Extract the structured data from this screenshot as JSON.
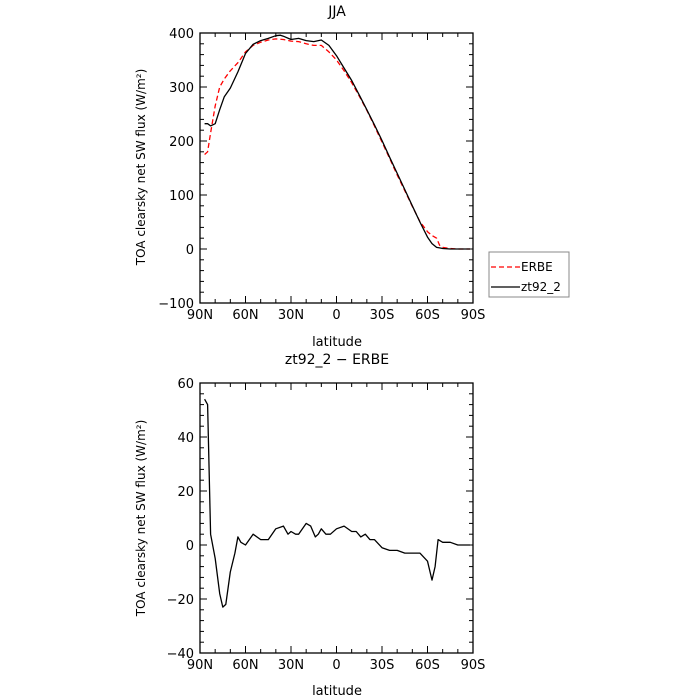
{
  "chart_data": [
    {
      "type": "line",
      "title": "JJA",
      "xlabel": "latitude",
      "ylabel": "TOA clearsky net SW flux (W/m²)",
      "xlim": [
        90,
        -90
      ],
      "ylim": [
        -100,
        400
      ],
      "x_ticks": [
        90,
        60,
        30,
        0,
        -30,
        -60,
        -90
      ],
      "x_tick_labels": [
        "90N",
        "60N",
        "30N",
        "0",
        "30S",
        "60S",
        "90S"
      ],
      "y_ticks": [
        -100,
        0,
        100,
        200,
        300,
        400
      ],
      "y_tick_labels": [
        "−100",
        "0",
        "100",
        "200",
        "300",
        "400"
      ],
      "legend_position": "right",
      "series": [
        {
          "name": "ERBE",
          "color": "#ff0000",
          "dash": "dashed",
          "x": [
            87,
            85,
            83,
            80,
            77,
            74,
            70,
            65,
            60,
            55,
            50,
            45,
            40,
            35,
            30,
            25,
            20,
            15,
            10,
            5,
            0,
            -5,
            -10,
            -15,
            -20,
            -25,
            -30,
            -35,
            -40,
            -45,
            -50,
            -55,
            -60,
            -63,
            -66,
            -68,
            -70,
            -75,
            -80,
            -85,
            -88
          ],
          "values": [
            175,
            180,
            215,
            265,
            300,
            315,
            330,
            345,
            365,
            377,
            383,
            387,
            389,
            388,
            385,
            384,
            380,
            377,
            377,
            365,
            350,
            330,
            308,
            283,
            257,
            228,
            198,
            168,
            137,
            108,
            79,
            51,
            32,
            25,
            20,
            7,
            3,
            1,
            0,
            0,
            0
          ]
        },
        {
          "name": "zt92_2",
          "color": "#000000",
          "dash": "solid",
          "x": [
            87,
            85,
            83,
            80,
            77,
            74,
            70,
            65,
            60,
            55,
            50,
            45,
            40,
            37,
            35,
            30,
            25,
            20,
            15,
            10,
            5,
            0,
            -5,
            -10,
            -15,
            -20,
            -25,
            -30,
            -35,
            -40,
            -45,
            -50,
            -55,
            -60,
            -63,
            -66,
            -68,
            -70,
            -75,
            -80,
            -85,
            -88
          ],
          "values": [
            232,
            232,
            228,
            232,
            258,
            282,
            298,
            328,
            362,
            379,
            386,
            390,
            395,
            396,
            394,
            388,
            390,
            386,
            384,
            387,
            377,
            358,
            335,
            312,
            285,
            258,
            230,
            201,
            170,
            140,
            110,
            80,
            50,
            22,
            10,
            3,
            2,
            1,
            0,
            0,
            0,
            0
          ]
        }
      ]
    },
    {
      "type": "line",
      "title": "zt92_2 − ERBE",
      "xlabel": "latitude",
      "ylabel": "TOA clearsky net SW flux (W/m²)",
      "xlim": [
        90,
        -90
      ],
      "ylim": [
        -40,
        60
      ],
      "x_ticks": [
        90,
        60,
        30,
        0,
        -30,
        -60,
        -90
      ],
      "x_tick_labels": [
        "90N",
        "60N",
        "30N",
        "0",
        "30S",
        "60S",
        "90S"
      ],
      "y_ticks": [
        -40,
        -20,
        0,
        20,
        40,
        60
      ],
      "y_tick_labels": [
        "−40",
        "−20",
        "0",
        "20",
        "40",
        "60"
      ],
      "series": [
        {
          "color": "#000000",
          "x": [
            87,
            85,
            83,
            80,
            77,
            75,
            73,
            70,
            67,
            65,
            63,
            60,
            55,
            50,
            45,
            40,
            35,
            32,
            30,
            27,
            25,
            20,
            17,
            14,
            12,
            10,
            7,
            4,
            0,
            -5,
            -10,
            -13,
            -16,
            -19,
            -22,
            -25,
            -30,
            -35,
            -40,
            -45,
            -50,
            -55,
            -60,
            -63,
            -65,
            -67,
            -70,
            -75,
            -80,
            -85,
            -88
          ],
          "values": [
            54,
            52,
            4,
            -5,
            -18,
            -23,
            -22,
            -10,
            -3,
            3,
            1,
            0,
            4,
            2,
            2,
            6,
            7,
            4,
            5,
            4,
            4,
            8,
            7,
            3,
            4,
            6,
            4,
            4,
            6,
            7,
            5,
            5,
            3,
            4,
            2,
            2,
            -1,
            -2,
            -2,
            -3,
            -3,
            -3,
            -6,
            -13,
            -8,
            2,
            1,
            1,
            0,
            0,
            0
          ]
        }
      ]
    }
  ]
}
